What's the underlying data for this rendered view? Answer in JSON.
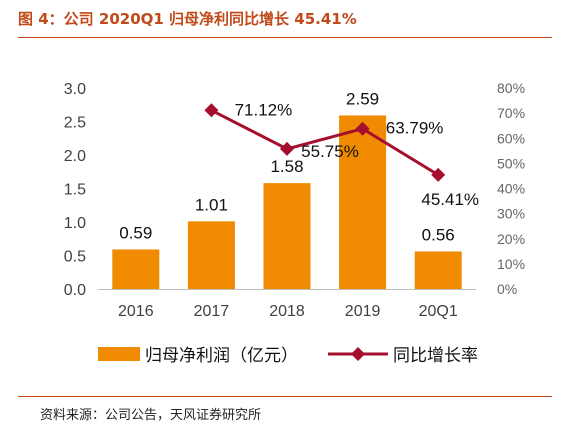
{
  "figure": {
    "title": "图 4：公司 2020Q1 归母净利同比增长 45.41%",
    "source": "资料来源：公司公告，天风证券研究所"
  },
  "colors": {
    "bar": "#f08a00",
    "line": "#a50f2d",
    "accent": "#c04a1a"
  },
  "chart_data": {
    "type": "bar",
    "categories": [
      "2016",
      "2017",
      "2018",
      "2019",
      "20Q1"
    ],
    "series": [
      {
        "name": "归母净利润（亿元）",
        "type": "bar",
        "axis": "left",
        "values": [
          0.59,
          1.01,
          1.58,
          2.59,
          0.56
        ],
        "labels": [
          "0.59",
          "1.01",
          "1.58",
          "2.59",
          "0.56"
        ]
      },
      {
        "name": "同比增长率",
        "type": "line",
        "axis": "right",
        "values": [
          null,
          71.12,
          55.75,
          63.79,
          45.41
        ],
        "labels": [
          "",
          "71.12%",
          "55.75%",
          "63.79%",
          "45.41%"
        ]
      }
    ],
    "y_left": {
      "range": [
        0,
        3.0
      ],
      "ticks": [
        "0.0",
        "0.5",
        "1.0",
        "1.5",
        "2.0",
        "2.5",
        "3.0"
      ]
    },
    "y_right": {
      "range": [
        0,
        80
      ],
      "ticks": [
        "0%",
        "10%",
        "20%",
        "30%",
        "40%",
        "50%",
        "60%",
        "70%",
        "80%"
      ]
    },
    "grid": false,
    "legend": "bottom"
  }
}
